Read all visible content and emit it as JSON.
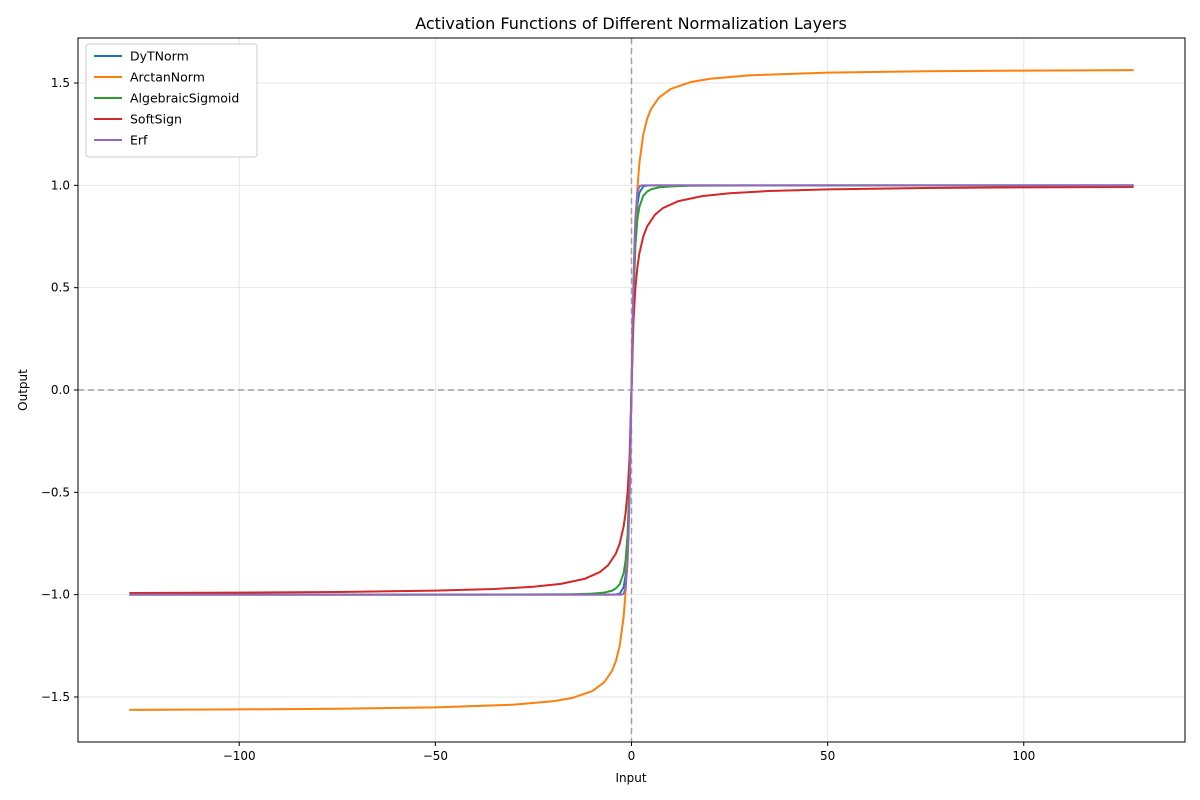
{
  "chart_data": {
    "type": "line",
    "title": "Activation Functions of Different Normalization Layers",
    "xlabel": "Input",
    "ylabel": "Output",
    "xlim": [
      -141.1,
      141.1
    ],
    "ylim": [
      -1.72,
      1.72
    ],
    "xticks": [
      -100,
      -50,
      0,
      50,
      100
    ],
    "yticks": [
      -1.5,
      -1.0,
      -0.5,
      0.0,
      0.5,
      1.0,
      1.5
    ],
    "xtick_labels": [
      "−100",
      "−50",
      "0",
      "50",
      "100"
    ],
    "ytick_labels": [
      "−1.5",
      "−1.0",
      "−0.5",
      "0.0",
      "0.5",
      "1.0",
      "1.5"
    ],
    "grid": true,
    "legend_position": "top-left",
    "reference_lines": [
      {
        "orientation": "horizontal",
        "value": 0,
        "style": "dashed",
        "color": "#a0a0a0"
      },
      {
        "orientation": "vertical",
        "value": 0,
        "style": "dashed",
        "color": "#a0a0a0"
      }
    ],
    "x_range": [
      -128,
      128
    ],
    "series": [
      {
        "name": "DyTNorm",
        "color": "#1f77b4",
        "points": [
          [
            -128,
            -1.0
          ],
          [
            -20,
            -1.0
          ],
          [
            -10,
            -1.0
          ],
          [
            -6,
            -0.99998
          ],
          [
            -4,
            -0.9993
          ],
          [
            -3,
            -0.995
          ],
          [
            -2,
            -0.964
          ],
          [
            -1.5,
            -0.905
          ],
          [
            -1,
            -0.762
          ],
          [
            -0.5,
            -0.462
          ],
          [
            0,
            0
          ],
          [
            0.5,
            0.462
          ],
          [
            1,
            0.762
          ],
          [
            1.5,
            0.905
          ],
          [
            2,
            0.964
          ],
          [
            3,
            0.995
          ],
          [
            4,
            0.9993
          ],
          [
            6,
            0.99998
          ],
          [
            10,
            1.0
          ],
          [
            20,
            1.0
          ],
          [
            128,
            1.0
          ]
        ]
      },
      {
        "name": "ArctanNorm",
        "color": "#ff7f0e",
        "points": [
          [
            -128,
            -1.563
          ],
          [
            -100,
            -1.5608
          ],
          [
            -75,
            -1.5575
          ],
          [
            -50,
            -1.5508
          ],
          [
            -30,
            -1.5375
          ],
          [
            -20,
            -1.5208
          ],
          [
            -15,
            -1.5042
          ],
          [
            -10,
            -1.4711
          ],
          [
            -7,
            -1.4289
          ],
          [
            -5,
            -1.3734
          ],
          [
            -4,
            -1.3258
          ],
          [
            -3,
            -1.249
          ],
          [
            -2,
            -1.1071
          ],
          [
            -1.5,
            -0.9828
          ],
          [
            -1,
            -0.7854
          ],
          [
            -0.5,
            -0.4636
          ],
          [
            0,
            0
          ],
          [
            0.5,
            0.4636
          ],
          [
            1,
            0.7854
          ],
          [
            1.5,
            0.9828
          ],
          [
            2,
            1.1071
          ],
          [
            3,
            1.249
          ],
          [
            4,
            1.3258
          ],
          [
            5,
            1.3734
          ],
          [
            7,
            1.4289
          ],
          [
            10,
            1.4711
          ],
          [
            15,
            1.5042
          ],
          [
            20,
            1.5208
          ],
          [
            30,
            1.5375
          ],
          [
            50,
            1.5508
          ],
          [
            75,
            1.5575
          ],
          [
            100,
            1.5608
          ],
          [
            128,
            1.563
          ]
        ]
      },
      {
        "name": "AlgebraicSigmoid",
        "color": "#2ca02c",
        "points": [
          [
            -128,
            -1.0
          ],
          [
            -50,
            -0.9998
          ],
          [
            -30,
            -0.9994
          ],
          [
            -20,
            -0.9988
          ],
          [
            -15,
            -0.9978
          ],
          [
            -10,
            -0.995
          ],
          [
            -7,
            -0.99
          ],
          [
            -5,
            -0.981
          ],
          [
            -4,
            -0.97
          ],
          [
            -3,
            -0.949
          ],
          [
            -2,
            -0.894
          ],
          [
            -1.5,
            -0.832
          ],
          [
            -1,
            -0.707
          ],
          [
            -0.5,
            -0.447
          ],
          [
            0,
            0
          ],
          [
            0.5,
            0.447
          ],
          [
            1,
            0.707
          ],
          [
            1.5,
            0.832
          ],
          [
            2,
            0.894
          ],
          [
            3,
            0.949
          ],
          [
            4,
            0.97
          ],
          [
            5,
            0.981
          ],
          [
            7,
            0.99
          ],
          [
            10,
            0.995
          ],
          [
            15,
            0.9978
          ],
          [
            20,
            0.9988
          ],
          [
            30,
            0.9994
          ],
          [
            50,
            0.9998
          ],
          [
            128,
            1.0
          ]
        ]
      },
      {
        "name": "SoftSign",
        "color": "#d62728",
        "points": [
          [
            -128,
            -0.9922
          ],
          [
            -100,
            -0.9901
          ],
          [
            -75,
            -0.9868
          ],
          [
            -50,
            -0.9804
          ],
          [
            -35,
            -0.9722
          ],
          [
            -25,
            -0.9615
          ],
          [
            -18,
            -0.9474
          ],
          [
            -12,
            -0.9231
          ],
          [
            -8,
            -0.8889
          ],
          [
            -6,
            -0.8571
          ],
          [
            -4,
            -0.8
          ],
          [
            -3,
            -0.75
          ],
          [
            -2,
            -0.6667
          ],
          [
            -1.5,
            -0.6
          ],
          [
            -1,
            -0.5
          ],
          [
            -0.5,
            -0.3333
          ],
          [
            0,
            0
          ],
          [
            0.5,
            0.3333
          ],
          [
            1,
            0.5
          ],
          [
            1.5,
            0.6
          ],
          [
            2,
            0.6667
          ],
          [
            3,
            0.75
          ],
          [
            4,
            0.8
          ],
          [
            6,
            0.8571
          ],
          [
            8,
            0.8889
          ],
          [
            12,
            0.9231
          ],
          [
            18,
            0.9474
          ],
          [
            25,
            0.9615
          ],
          [
            35,
            0.9722
          ],
          [
            50,
            0.9804
          ],
          [
            75,
            0.9868
          ],
          [
            100,
            0.9901
          ],
          [
            128,
            0.9922
          ]
        ]
      },
      {
        "name": "Erf",
        "color": "#9467bd",
        "points": [
          [
            -128,
            -1.0
          ],
          [
            -10,
            -1.0
          ],
          [
            -3,
            -1.0
          ],
          [
            -2.5,
            -0.9996
          ],
          [
            -2,
            -0.9953
          ],
          [
            -1.5,
            -0.9661
          ],
          [
            -1,
            -0.8427
          ],
          [
            -0.75,
            -0.7112
          ],
          [
            -0.5,
            -0.5205
          ],
          [
            -0.25,
            -0.2763
          ],
          [
            0,
            0
          ],
          [
            0.25,
            0.2763
          ],
          [
            0.5,
            0.5205
          ],
          [
            0.75,
            0.7112
          ],
          [
            1,
            0.8427
          ],
          [
            1.5,
            0.9661
          ],
          [
            2,
            0.9953
          ],
          [
            2.5,
            0.9996
          ],
          [
            3,
            1.0
          ],
          [
            10,
            1.0
          ],
          [
            128,
            1.0
          ]
        ]
      }
    ]
  }
}
